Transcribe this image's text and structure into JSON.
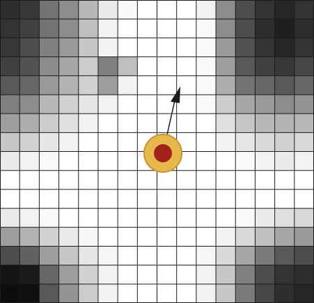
{
  "grid": {
    "rows": 16,
    "cols": 16,
    "line_color": "#1a1a1a",
    "levels": [
      [
        0.18,
        0.22,
        0.45,
        0.55,
        0.72,
        0.92,
        0.98,
        1.0,
        1.0,
        1.0,
        0.95,
        0.55,
        0.3,
        0.2,
        0.15,
        0.2
      ],
      [
        0.2,
        0.25,
        0.45,
        0.55,
        0.75,
        0.95,
        1.0,
        1.0,
        1.0,
        1.0,
        0.98,
        0.55,
        0.3,
        0.18,
        0.12,
        0.18
      ],
      [
        0.22,
        0.3,
        0.5,
        0.6,
        0.78,
        0.95,
        1.0,
        1.0,
        1.0,
        1.0,
        0.98,
        0.6,
        0.32,
        0.2,
        0.15,
        0.2
      ],
      [
        0.25,
        0.32,
        0.55,
        0.65,
        0.8,
        0.5,
        0.75,
        1.0,
        1.0,
        1.0,
        0.98,
        0.62,
        0.35,
        0.25,
        0.22,
        0.28
      ],
      [
        0.35,
        0.4,
        0.6,
        0.7,
        0.82,
        0.62,
        0.95,
        1.0,
        1.0,
        1.0,
        0.98,
        0.68,
        0.45,
        0.4,
        0.35,
        0.4
      ],
      [
        0.5,
        0.55,
        0.72,
        0.82,
        0.9,
        0.95,
        1.0,
        1.0,
        1.0,
        1.0,
        0.98,
        0.8,
        0.65,
        0.6,
        0.55,
        0.58
      ],
      [
        0.62,
        0.68,
        0.8,
        0.88,
        0.95,
        1.0,
        1.0,
        1.0,
        1.0,
        1.0,
        1.0,
        0.88,
        0.78,
        0.72,
        0.7,
        0.72
      ],
      [
        0.78,
        0.82,
        0.9,
        0.95,
        1.0,
        1.0,
        1.0,
        1.0,
        1.0,
        1.0,
        1.0,
        0.95,
        0.9,
        0.85,
        0.82,
        0.85
      ],
      [
        0.92,
        0.95,
        0.98,
        1.0,
        1.0,
        1.0,
        1.0,
        1.0,
        1.0,
        1.0,
        1.0,
        1.0,
        0.98,
        0.95,
        0.92,
        0.95
      ],
      [
        1.0,
        1.0,
        1.0,
        1.0,
        1.0,
        1.0,
        1.0,
        1.0,
        1.0,
        1.0,
        1.0,
        1.0,
        1.0,
        1.0,
        1.0,
        1.0
      ],
      [
        1.0,
        1.0,
        1.0,
        1.0,
        1.0,
        1.0,
        1.0,
        1.0,
        1.0,
        1.0,
        1.0,
        1.0,
        1.0,
        1.0,
        1.0,
        1.0
      ],
      [
        0.92,
        0.95,
        0.98,
        1.0,
        1.0,
        1.0,
        1.0,
        1.0,
        1.0,
        1.0,
        1.0,
        1.0,
        0.98,
        0.92,
        0.88,
        0.85
      ],
      [
        0.62,
        0.7,
        0.82,
        0.92,
        0.97,
        1.0,
        1.0,
        1.0,
        1.0,
        1.0,
        1.0,
        0.95,
        0.85,
        0.75,
        0.65,
        0.6
      ],
      [
        0.3,
        0.38,
        0.62,
        0.78,
        0.9,
        0.97,
        1.0,
        1.0,
        1.0,
        1.0,
        0.97,
        0.85,
        0.65,
        0.48,
        0.35,
        0.3
      ],
      [
        0.08,
        0.1,
        0.4,
        0.62,
        0.82,
        0.95,
        1.0,
        1.0,
        1.0,
        1.0,
        0.95,
        0.78,
        0.5,
        0.3,
        0.2,
        0.18
      ],
      [
        0.05,
        0.06,
        0.35,
        0.58,
        0.8,
        0.95,
        1.0,
        1.0,
        1.0,
        1.0,
        0.95,
        0.78,
        0.48,
        0.28,
        0.18,
        0.15
      ]
    ]
  },
  "agent": {
    "outer_color": "#e8b84a",
    "outer_stroke": "#c8952a",
    "inner_color": "#a0221a",
    "heading_color": "#1a1a1a"
  }
}
